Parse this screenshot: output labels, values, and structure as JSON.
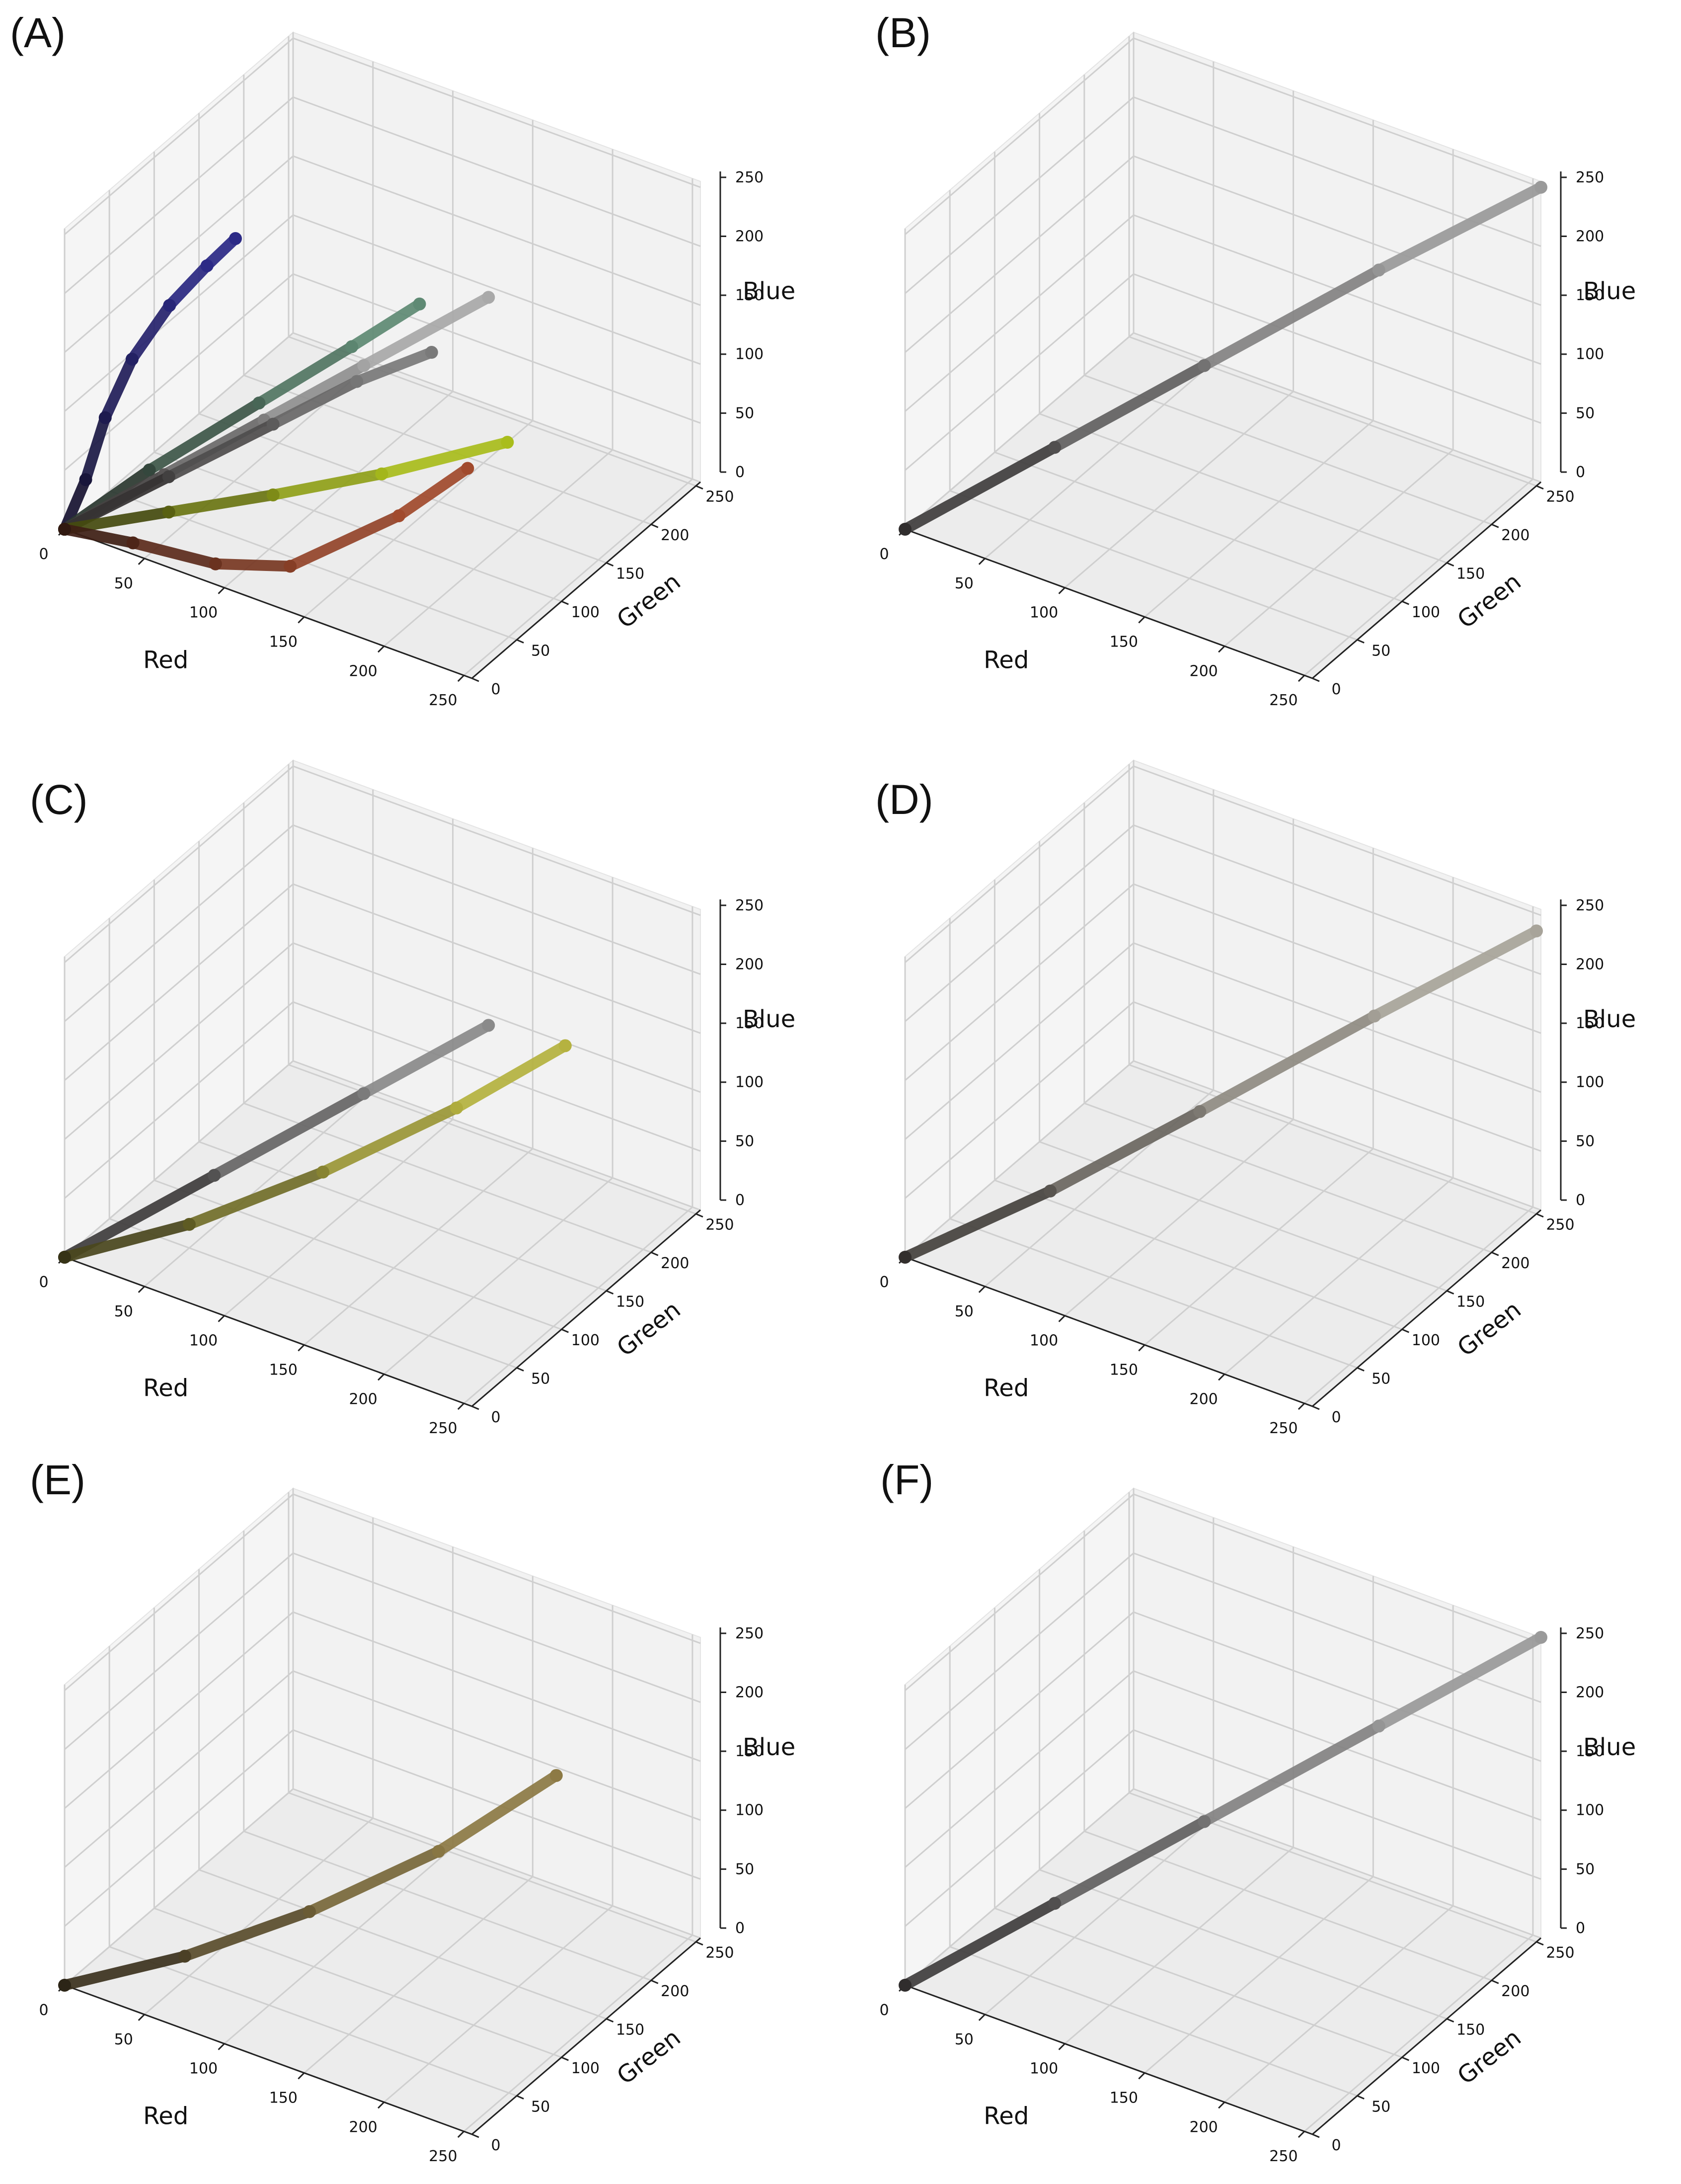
{
  "figure": {
    "panels": [
      {
        "label": "(A)"
      },
      {
        "label": "(B)"
      },
      {
        "label": "(C)"
      },
      {
        "label": "(D)"
      },
      {
        "label": "(E)"
      },
      {
        "label": "(F)"
      }
    ]
  },
  "chart_data": [
    {
      "panel": "(A)",
      "type": "scatter",
      "xlabel": "Red",
      "ylabel": "Green",
      "zlabel": "Blue",
      "xlim": [
        0,
        255
      ],
      "ylim": [
        0,
        255
      ],
      "zlim": [
        0,
        255
      ],
      "xticks": [
        0,
        50,
        100,
        150,
        200,
        250
      ],
      "yticks": [
        0,
        50,
        100,
        150,
        200,
        250
      ],
      "zticks": [
        0,
        50,
        100,
        150,
        200,
        250
      ],
      "grid": true,
      "series": [
        {
          "color": "#2c2a86",
          "points": [
            [
              0,
              0,
              0
            ],
            [
              2,
              20,
              30
            ],
            [
              3,
              40,
              70
            ],
            [
              3,
              70,
              100
            ],
            [
              4,
              110,
              120
            ],
            [
              5,
              150,
              128
            ],
            [
              6,
              180,
              132
            ]
          ]
        },
        {
          "color": "#5f8a74",
          "points": [
            [
              0,
              0,
              0
            ],
            [
              25,
              50,
              30
            ],
            [
              60,
              110,
              65
            ],
            [
              90,
              160,
              95
            ],
            [
              110,
              200,
              115
            ]
          ]
        },
        {
          "color": "#a9a9a9",
          "points": [
            [
              0,
              0,
              0
            ],
            [
              40,
              40,
              40
            ],
            [
              80,
              80,
              80
            ],
            [
              120,
              120,
              120
            ],
            [
              170,
              170,
              170
            ]
          ]
        },
        {
          "color": "#7a7a7a",
          "points": [
            [
              0,
              0,
              0
            ],
            [
              40,
              45,
              35
            ],
            [
              80,
              90,
              70
            ],
            [
              110,
              130,
              95
            ],
            [
              140,
              160,
              115
            ]
          ]
        },
        {
          "color": "#a9bd1c",
          "points": [
            [
              0,
              0,
              0
            ],
            [
              40,
              45,
              5
            ],
            [
              80,
              90,
              10
            ],
            [
              120,
              140,
              15
            ],
            [
              165,
              200,
              25
            ]
          ]
        },
        {
          "color": "#a14a2d",
          "points": [
            [
              0,
              0,
              0
            ],
            [
              40,
              5,
              5
            ],
            [
              90,
              8,
              10
            ],
            [
              130,
              20,
              20
            ],
            [
              170,
              70,
              50
            ],
            [
              185,
              120,
              65
            ]
          ]
        }
      ]
    },
    {
      "panel": "(B)",
      "type": "scatter",
      "xlabel": "Red",
      "ylabel": "Green",
      "zlabel": "Blue",
      "xlim": [
        0,
        255
      ],
      "ylim": [
        0,
        255
      ],
      "zlim": [
        0,
        255
      ],
      "xticks": [
        0,
        50,
        100,
        150,
        200,
        250
      ],
      "yticks": [
        0,
        50,
        100,
        150,
        200,
        250
      ],
      "zticks": [
        0,
        50,
        100,
        150,
        200,
        250
      ],
      "grid": true,
      "series": [
        {
          "color": "#9a9a9a",
          "points": [
            [
              0,
              0,
              0
            ],
            [
              60,
              60,
              60
            ],
            [
              120,
              120,
              120
            ],
            [
              190,
              190,
              190
            ],
            [
              255,
              255,
              250
            ]
          ]
        }
      ]
    },
    {
      "panel": "(C)",
      "type": "scatter",
      "xlabel": "Red",
      "ylabel": "Green",
      "zlabel": "Blue",
      "xlim": [
        0,
        255
      ],
      "ylim": [
        0,
        255
      ],
      "zlim": [
        0,
        255
      ],
      "xticks": [
        0,
        50,
        100,
        150,
        200,
        250
      ],
      "yticks": [
        0,
        50,
        100,
        150,
        200,
        250
      ],
      "zticks": [
        0,
        50,
        100,
        150,
        200,
        250
      ],
      "grid": true,
      "series": [
        {
          "color": "#8a8a8a",
          "points": [
            [
              0,
              0,
              0
            ],
            [
              60,
              60,
              60
            ],
            [
              120,
              120,
              120
            ],
            [
              170,
              170,
              170
            ]
          ]
        },
        {
          "color": "#b5b240",
          "points": [
            [
              0,
              0,
              0
            ],
            [
              50,
              50,
              20
            ],
            [
              100,
              110,
              50
            ],
            [
              150,
              170,
              90
            ],
            [
              190,
              220,
              130
            ]
          ]
        }
      ]
    },
    {
      "panel": "(D)",
      "type": "scatter",
      "xlabel": "Red",
      "ylabel": "Green",
      "zlabel": "Blue",
      "xlim": [
        0,
        255
      ],
      "ylim": [
        0,
        255
      ],
      "zlim": [
        0,
        255
      ],
      "xticks": [
        0,
        50,
        100,
        150,
        200,
        250
      ],
      "yticks": [
        0,
        50,
        100,
        150,
        200,
        250
      ],
      "zticks": [
        0,
        50,
        100,
        150,
        200,
        250
      ],
      "grid": true,
      "series": [
        {
          "color": "#a8a49a",
          "points": [
            [
              0,
              0,
              0
            ],
            [
              60,
              55,
              50
            ],
            [
              120,
              115,
              108
            ],
            [
              190,
              185,
              178
            ],
            [
              255,
              250,
              240
            ]
          ]
        }
      ]
    },
    {
      "panel": "(E)",
      "type": "scatter",
      "xlabel": "Red",
      "ylabel": "Green",
      "zlabel": "Blue",
      "xlim": [
        0,
        255
      ],
      "ylim": [
        0,
        255
      ],
      "zlim": [
        0,
        255
      ],
      "xticks": [
        0,
        50,
        100,
        150,
        200,
        250
      ],
      "yticks": [
        0,
        50,
        100,
        150,
        200,
        250
      ],
      "zticks": [
        0,
        50,
        100,
        150,
        200,
        250
      ],
      "grid": true,
      "series": [
        {
          "color": "#8d7a45",
          "points": [
            [
              0,
              0,
              0
            ],
            [
              50,
              45,
              20
            ],
            [
              100,
              95,
              50
            ],
            [
              150,
              150,
              90
            ],
            [
              190,
              210,
              135
            ]
          ]
        }
      ]
    },
    {
      "panel": "(F)",
      "type": "scatter",
      "xlabel": "Red",
      "ylabel": "Green",
      "zlabel": "Blue",
      "xlim": [
        0,
        255
      ],
      "ylim": [
        0,
        255
      ],
      "zlim": [
        0,
        255
      ],
      "xticks": [
        0,
        50,
        100,
        150,
        200,
        250
      ],
      "yticks": [
        0,
        50,
        100,
        150,
        200,
        250
      ],
      "zticks": [
        0,
        50,
        100,
        150,
        200,
        250
      ],
      "grid": true,
      "series": [
        {
          "color": "#9a9a9a",
          "points": [
            [
              0,
              0,
              0
            ],
            [
              60,
              60,
              60
            ],
            [
              120,
              120,
              120
            ],
            [
              190,
              190,
              190
            ],
            [
              255,
              255,
              255
            ]
          ]
        }
      ]
    }
  ]
}
